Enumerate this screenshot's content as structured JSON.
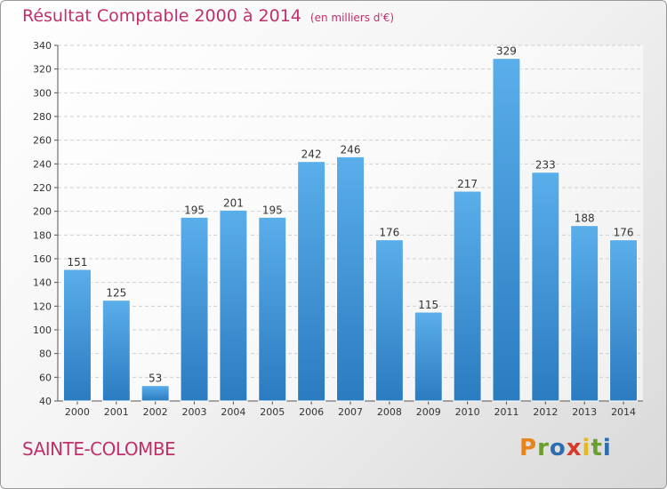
{
  "header": {
    "title": "Résultat Comptable 2000 à 2014",
    "subtitle": "(en milliers d'€)"
  },
  "footer": {
    "place": "SAINTE-COLOMBE",
    "logo": "Proxiti",
    "logo_colors": [
      "#e8841a",
      "#6a9e2f",
      "#2e6db0",
      "#d43b2a",
      "#e8b81a",
      "#6a9e2f",
      "#2e6db0"
    ]
  },
  "chart_data": {
    "type": "bar",
    "title": "Résultat Comptable 2000 à 2014",
    "subtitle": "(en milliers d'€)",
    "xlabel": "",
    "ylabel": "",
    "categories": [
      "2000",
      "2001",
      "2002",
      "2003",
      "2004",
      "2005",
      "2006",
      "2007",
      "2008",
      "2009",
      "2010",
      "2011",
      "2012",
      "2013",
      "2014"
    ],
    "values": [
      151,
      125,
      53,
      195,
      201,
      195,
      242,
      246,
      176,
      115,
      217,
      329,
      233,
      188,
      176
    ],
    "ylim": [
      40,
      340
    ],
    "yticks": [
      40,
      60,
      80,
      100,
      120,
      140,
      160,
      180,
      200,
      220,
      240,
      260,
      280,
      300,
      320,
      340
    ],
    "grid": true,
    "bar_color": "#4ea3e0",
    "bar_color_dark": "#2b7bc0"
  }
}
